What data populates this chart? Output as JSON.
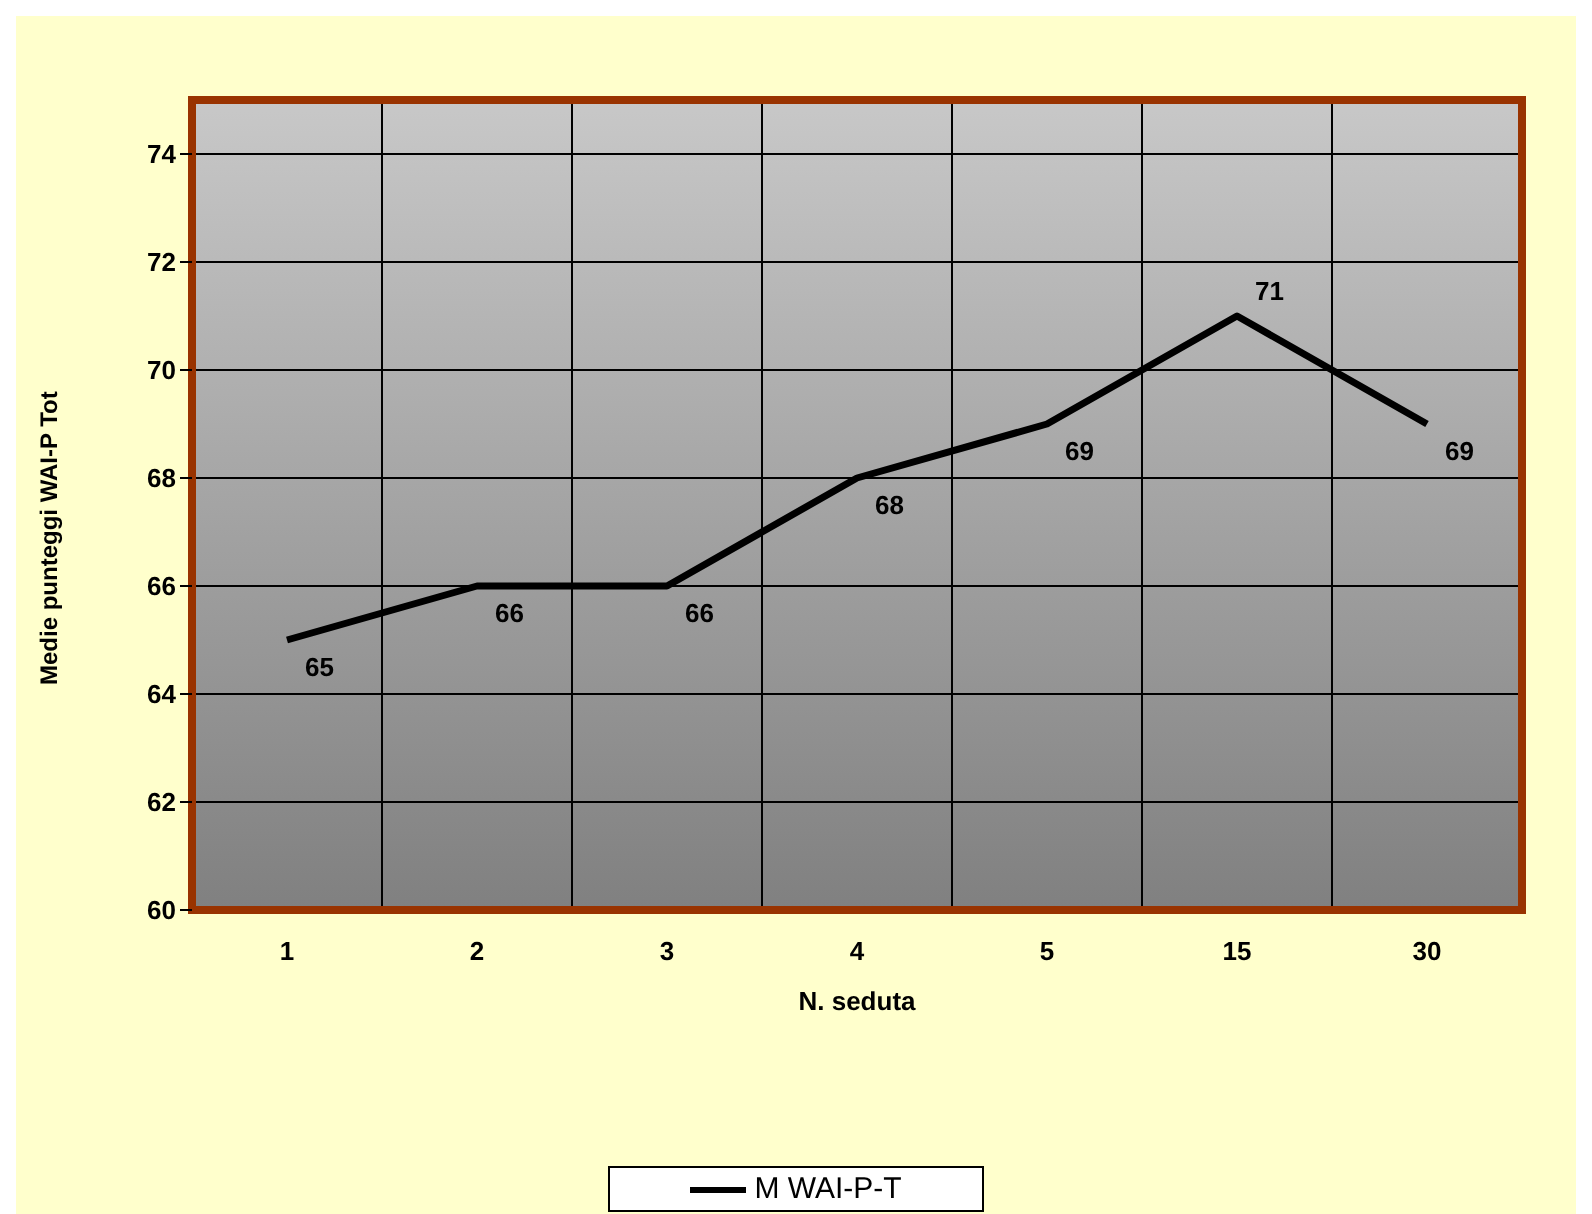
{
  "chart_data": {
    "type": "line",
    "xlabel": "N. seduta",
    "ylabel": "Medie punteggi WAI-P Tot",
    "categories": [
      "1",
      "2",
      "3",
      "4",
      "5",
      "15",
      "30"
    ],
    "series": [
      {
        "name": "M WAI-P-T",
        "color": "#000000",
        "values": [
          65,
          66,
          66,
          68,
          69,
          71,
          69
        ]
      }
    ],
    "ylim": [
      60,
      75
    ],
    "yticks": [
      60,
      62,
      64,
      66,
      68,
      70,
      72,
      74
    ],
    "grid": true,
    "legend": "bottom",
    "marker": "none",
    "data_labels": true
  }
}
